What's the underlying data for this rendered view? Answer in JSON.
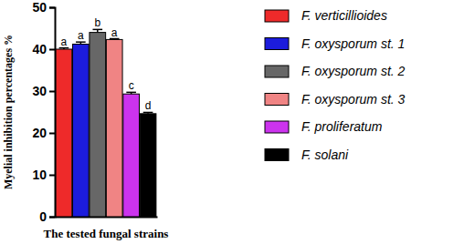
{
  "chart_data": {
    "type": "bar",
    "x_label": "The tested fungal strains",
    "y_label": "Myelial inhibition percentages %",
    "categories": [
      "F. verticillioides",
      "F. oxysporum st. 1",
      "F. oxysporum st. 2",
      "F. oxysporum st. 3",
      "F. proliferatum",
      "F. solani"
    ],
    "values": [
      40.0,
      41.2,
      44.0,
      42.3,
      29.3,
      24.6
    ],
    "errors": [
      0.3,
      0.5,
      0.7,
      0.2,
      0.4,
      0.3
    ],
    "annotations": [
      "a",
      "a",
      "b",
      "a",
      "c",
      "d"
    ],
    "colors": [
      "#ee2a2a",
      "#1c1cdc",
      "#676767",
      "#f08484",
      "#cc33ee",
      "#000000"
    ],
    "ylim": [
      0,
      50
    ],
    "yticks": [
      0,
      10,
      20,
      30,
      40,
      50
    ],
    "tick_labels": "y",
    "legend": "right",
    "grid": false
  }
}
